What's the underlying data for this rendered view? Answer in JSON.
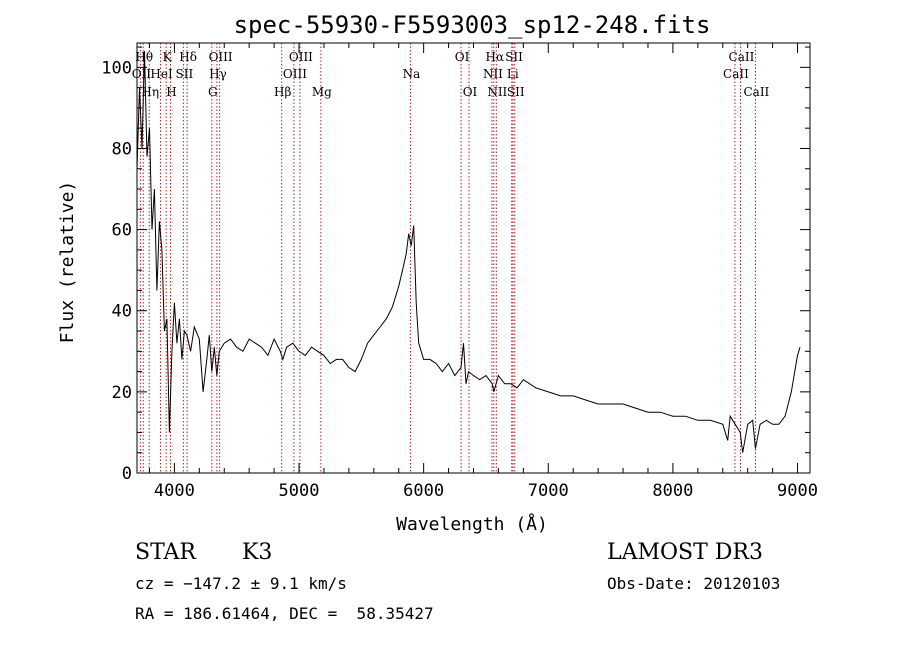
{
  "chart_data": {
    "type": "line",
    "title": "spec-55930-F5593003_sp12-248.fits",
    "xlabel": "Wavelength (Å)",
    "ylabel": "Flux (relative)",
    "xlim": [
      3700,
      9100
    ],
    "ylim": [
      0,
      106
    ],
    "xticks": [
      4000,
      5000,
      6000,
      7000,
      8000,
      9000
    ],
    "xtick_labels": [
      "4000",
      "5000",
      "6000",
      "7000",
      "8000",
      "9000"
    ],
    "yticks": [
      0,
      20,
      40,
      60,
      80,
      100
    ],
    "ytick_labels": [
      "0",
      "20",
      "40",
      "60",
      "80",
      "100"
    ],
    "grid": false,
    "series": [
      {
        "x": [
          3700,
          3720,
          3740,
          3760,
          3780,
          3800,
          3820,
          3840,
          3860,
          3880,
          3900,
          3920,
          3940,
          3960,
          3980,
          4000,
          4020,
          4040,
          4060,
          4080,
          4100,
          4130,
          4160,
          4200,
          4230,
          4260,
          4280,
          4300,
          4320,
          4340,
          4360,
          4400,
          4450,
          4500,
          4550,
          4600,
          4650,
          4700,
          4750,
          4800,
          4850,
          4870,
          4900,
          4950,
          5000,
          5050,
          5100,
          5150,
          5200,
          5250,
          5300,
          5350,
          5400,
          5450,
          5500,
          5550,
          5600,
          5650,
          5700,
          5750,
          5800,
          5830,
          5860,
          5880,
          5900,
          5920,
          5940,
          5960,
          5980,
          6000,
          6050,
          6100,
          6150,
          6200,
          6250,
          6300,
          6320,
          6340,
          6360,
          6400,
          6450,
          6500,
          6550,
          6563,
          6600,
          6650,
          6700,
          6750,
          6800,
          6900,
          7000,
          7100,
          7200,
          7300,
          7400,
          7500,
          7600,
          7700,
          7800,
          7900,
          8000,
          8100,
          8200,
          8300,
          8400,
          8440,
          8460,
          8500,
          8540,
          8560,
          8600,
          8640,
          8662,
          8700,
          8750,
          8800,
          8850,
          8900,
          8950,
          9000,
          9020
        ],
        "y": [
          75,
          95,
          80,
          104,
          78,
          85,
          60,
          70,
          45,
          62,
          55,
          35,
          38,
          10,
          30,
          42,
          32,
          38,
          28,
          35,
          34,
          30,
          36,
          33,
          20,
          28,
          34,
          25,
          31,
          24,
          30,
          32,
          33,
          31,
          30,
          33,
          32,
          31,
          29,
          33,
          30,
          28,
          31,
          32,
          30,
          29,
          31,
          30,
          29,
          27,
          28,
          28,
          26,
          25,
          28,
          32,
          34,
          36,
          38,
          41,
          46,
          50,
          54,
          59,
          56,
          61,
          42,
          32,
          30,
          28,
          28,
          27,
          25,
          27,
          24,
          26,
          32,
          22,
          25,
          24,
          23,
          24,
          22,
          20,
          24,
          22,
          22,
          21,
          23,
          21,
          20,
          19,
          19,
          18,
          17,
          17,
          17,
          16,
          15,
          15,
          14,
          14,
          13,
          13,
          12,
          8,
          14,
          12,
          10,
          5,
          12,
          13,
          6,
          12,
          13,
          12,
          12,
          14,
          20,
          29,
          31
        ]
      }
    ],
    "lines": [
      {
        "x": 3727,
        "label": "OII",
        "row": 1
      },
      {
        "x": 3750,
        "label": "Hθ",
        "row": 0
      },
      {
        "x": 3798,
        "label": "Hη",
        "row": 2
      },
      {
        "x": 3889,
        "label": "HeI",
        "row": 1
      },
      {
        "x": 3934,
        "label": "K",
        "row": 0
      },
      {
        "x": 3969,
        "label": "H",
        "row": 2
      },
      {
        "x": 4072,
        "label": "SII",
        "row": 1
      },
      {
        "x": 4102,
        "label": "Hδ",
        "row": 0
      },
      {
        "x": 4300,
        "label": "G",
        "row": 2
      },
      {
        "x": 4341,
        "label": "Hγ",
        "row": 1
      },
      {
        "x": 4363,
        "label": "OIII",
        "row": 0
      },
      {
        "x": 4861,
        "label": "Hβ",
        "row": 2
      },
      {
        "x": 4959,
        "label": "OIII",
        "row": 1
      },
      {
        "x": 5007,
        "label": "OIII",
        "row": 0
      },
      {
        "x": 5175,
        "label": "Mg",
        "row": 2
      },
      {
        "x": 5894,
        "label": "Na",
        "row": 1
      },
      {
        "x": 6300,
        "label": "OI",
        "row": 0
      },
      {
        "x": 6364,
        "label": "OI",
        "row": 2
      },
      {
        "x": 6548,
        "label": "NII",
        "row": 1
      },
      {
        "x": 6563,
        "label": "Hα",
        "row": 0
      },
      {
        "x": 6583,
        "label": "NII",
        "row": 2
      },
      {
        "x": 6707,
        "label": "Li",
        "row": 1
      },
      {
        "x": 6717,
        "label": "SII",
        "row": 0
      },
      {
        "x": 6731,
        "label": "SII",
        "row": 2
      },
      {
        "x": 8498,
        "label": "CaII",
        "row": 1
      },
      {
        "x": 8542,
        "label": "CaII",
        "row": 0
      },
      {
        "x": 8662,
        "label": "CaII",
        "row": 2
      }
    ]
  },
  "info": {
    "class": "STAR",
    "subclass": "K3",
    "survey": "LAMOST DR3",
    "cz": "cz = −147.2 ± 9.1 km/s",
    "obs_date": "Obs-Date: 20120103",
    "coords": "RA = 186.61464, DEC =  58.35427"
  }
}
